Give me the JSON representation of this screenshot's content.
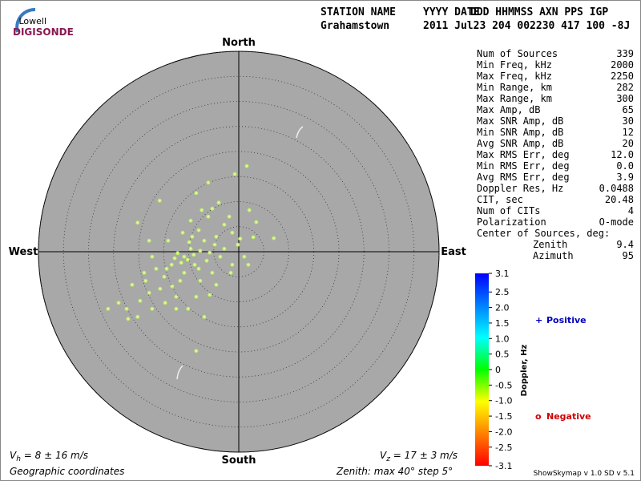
{
  "logo": {
    "top": "Lowell",
    "name": "DIGISONDE"
  },
  "header": {
    "columns": [
      "STATION NAME",
      "YYYY DATE",
      "DDD HHMMSS AXN PPS IGP"
    ],
    "values": [
      "Grahamstown",
      "2011 Jul23 204 002230 417 100 -8J"
    ]
  },
  "stats": {
    "rows": [
      [
        "Num of Sources",
        "339"
      ],
      [
        "Min Freq, kHz",
        "2000"
      ],
      [
        "Max Freq, kHz",
        "2250"
      ],
      [
        "Min Range, km",
        "282"
      ],
      [
        "Max Range, km",
        "300"
      ],
      [
        "Max Amp, dB",
        "65"
      ],
      [
        "Max SNR Amp, dB",
        "30"
      ],
      [
        "Min SNR Amp, dB",
        "12"
      ],
      [
        "Avg SNR Amp, dB",
        "20"
      ],
      [
        "Max RMS Err, deg",
        "12.0"
      ],
      [
        "Min RMS Err, deg",
        "0.0"
      ],
      [
        "Avg RMS Err, deg",
        "3.9"
      ],
      [
        "Doppler Res, Hz",
        "0.0488"
      ],
      [
        "CIT, sec",
        "20.48"
      ],
      [
        "Num of CITs",
        "4"
      ],
      [
        "Polarization",
        "O-mode"
      ]
    ],
    "center_title": "Center of Sources, deg:",
    "center_rows": [
      [
        "Zenith",
        "9.4"
      ],
      [
        "Azimuth",
        "95"
      ]
    ]
  },
  "chart_data": {
    "type": "polar-scatter",
    "directions": {
      "north": "North",
      "south": "South",
      "east": "East",
      "west": "West"
    },
    "rlim": [
      0,
      40
    ],
    "rticks": [
      5,
      10,
      15,
      20,
      25,
      30,
      35,
      40
    ],
    "grid": true,
    "series": [
      {
        "name": "Sources",
        "color": "#b5ec5e",
        "x": [
          1.6,
          -0.8,
          -6.1,
          -15.8,
          -8.5,
          -4.0,
          -1.9,
          2.1,
          3.5,
          7.0,
          -20.2,
          -17.9,
          -6.1,
          -8.0,
          -4.5,
          -1.3,
          -0.2,
          -1.6,
          1.9,
          -10.9,
          -12.2,
          -9.6,
          -13.4,
          -14.9,
          -17.3,
          -18.9,
          -21.3,
          -24.0,
          -26.1,
          -22.1,
          -20.2,
          -17.3,
          -14.7,
          -12.5,
          -10.1,
          -6.9,
          -8.5,
          -7.7,
          -5.3,
          -3.7,
          -6.9,
          -9.3,
          -11.2,
          -14.1,
          -15.7,
          -17.9,
          -19.7,
          -10.9,
          -8.8,
          -6.4,
          -4.8,
          -2.9,
          -5.3,
          -7.4,
          -9.6,
          0.3,
          2.9,
          -11.7,
          -13.3,
          -4.5,
          -2.9,
          -10.2,
          -11.5,
          -12.8,
          -9.0,
          -9.9,
          -7.7,
          -5.8,
          -8.0,
          -14.4,
          -16.5,
          -18.6,
          -22.4,
          -12.5,
          -8.5,
          -5.8,
          -1.3,
          1.1
        ],
        "y": [
          17.1,
          15.5,
          13.8,
          10.2,
          11.7,
          9.8,
          7.0,
          8.3,
          5.9,
          2.7,
          5.8,
          2.2,
          7.0,
          4.3,
          3.0,
          3.8,
          1.4,
          -4.2,
          -2.6,
          -1.0,
          -0.3,
          0.6,
          -2.6,
          -5.0,
          -1.0,
          -4.2,
          -6.6,
          -10.2,
          -11.4,
          -13.4,
          -13.0,
          -11.4,
          -10.2,
          -9.0,
          -11.4,
          -13.0,
          -19.8,
          -5.8,
          -4.2,
          -1.0,
          2.2,
          3.0,
          3.8,
          2.2,
          -7.4,
          -8.2,
          -9.8,
          -4.2,
          -2.6,
          -1.8,
          1.4,
          5.4,
          8.6,
          8.3,
          6.2,
          2.6,
          2.9,
          -5.8,
          -6.9,
          -6.6,
          0.6,
          -1.6,
          -2.2,
          -1.3,
          -0.6,
          1.9,
          0.2,
          -0.2,
          -3.4,
          -3.4,
          -3.4,
          -5.8,
          -11.4,
          -11.4,
          -9.0,
          -8.6,
          -2.6,
          -1.0
        ]
      }
    ],
    "colorbar": {
      "label": "Doppler, Hz",
      "lim": [
        -3.1,
        3.1
      ],
      "colors": [
        "#ff0000",
        "#ff8000",
        "#ffff00",
        "#00ff00",
        "#00ffff",
        "#0080ff",
        "#0000ff"
      ],
      "ticks": [
        3.1,
        2.5,
        {
          "value": 2,
          "label": "2.0"
        },
        1.5,
        {
          "value": 1,
          "label": "1.0"
        },
        0.5,
        0,
        -0.5,
        {
          "value": -1,
          "label": "-1.0"
        },
        -1.5,
        {
          "value": -2,
          "label": "-2.0"
        },
        -2.5,
        -3.1
      ]
    },
    "legend": [
      {
        "marker": "+",
        "label": "Positive",
        "color": "#0000c0"
      },
      {
        "marker": "o",
        "label": "Negative",
        "color": "#d00000"
      }
    ]
  },
  "footer": {
    "vh": {
      "symbol": "V",
      "sub": "h",
      "rest": " = 8 ± 16 m/s"
    },
    "vz": {
      "symbol": "V",
      "sub": "z",
      "rest": " = 17 ± 3 m/s"
    },
    "coords": "Geographic coordinates",
    "zenith": "Zenith: max 40°  step 5°",
    "version": "ShowSkymap v 1.0   SD v 5.1"
  }
}
